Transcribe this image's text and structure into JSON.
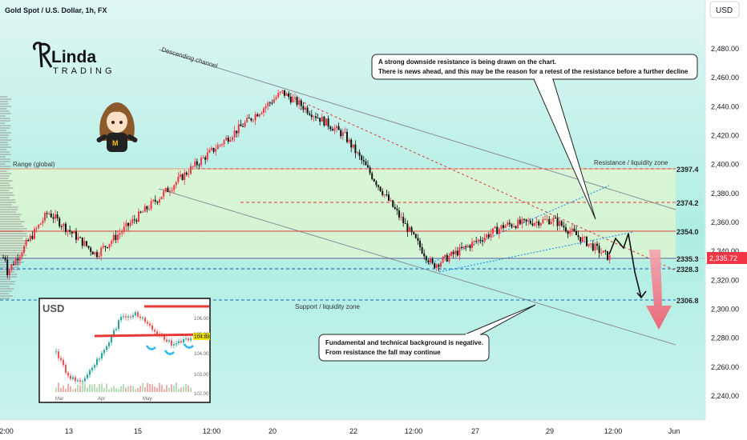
{
  "header": {
    "symbol_title": "Gold Spot / U.S. Dollar, 1h, FX",
    "currency_button": "USD"
  },
  "logo": {
    "text_top": "Linda",
    "text_bottom": "TRADING"
  },
  "price_axis": {
    "labels": [
      "2,480.00",
      "2,460.00",
      "2,440.00",
      "2,420.00",
      "2,400.00",
      "2,380.00",
      "2,360.00",
      "2,340.00",
      "2,320.00",
      "2,300.00",
      "2,280.00",
      "2,260.00",
      "2,240.00"
    ],
    "current_price": "2,335.72",
    "current_price_color": "#f23645"
  },
  "time_axis": {
    "labels": [
      "2:00",
      "13",
      "15",
      "12:00",
      "20",
      "22",
      "12:00",
      "27",
      "29",
      "12:00",
      "Jun"
    ]
  },
  "annotations": {
    "descending_channel": "Descending channel",
    "range_global": "Range (global)",
    "resistance_zone": "Resistance / liquidity zone",
    "support_zone": "Support / liquidity zone",
    "callout_top_line1": "A strong downside resistance is being drawn on the chart.",
    "callout_top_line2": "There is news ahead, and this may be the reason for a retest of the resistance before a further decline",
    "callout_bottom_line1": "Fundamental and technical background is negative.",
    "callout_bottom_line2": "From resistance the fall may continue"
  },
  "level_labels": [
    "2397.4",
    "2374.2",
    "2354.0",
    "2335.3",
    "2328.3",
    "2306.8"
  ],
  "inset": {
    "title": "USD",
    "y_labels": [
      "106.00",
      "105.00",
      "104.00",
      "103.00",
      "102.00"
    ],
    "x_labels": [
      "Mar",
      "Apr",
      "May"
    ],
    "price_tag": "104.88"
  },
  "colors": {
    "up_candle": "#f23645",
    "down_candle": "#111111",
    "resistance_red": "#e53935",
    "support_blue": "#1565c0",
    "channel_gray": "#7a7f8a",
    "arrow_pink": "#ef5a6f"
  },
  "chart_data": {
    "type": "line",
    "title": "Gold Spot / U.S. Dollar, 1h, FX",
    "xlabel": "",
    "ylabel": "",
    "x": [
      "2:00",
      "13",
      "15",
      "12:00",
      "20",
      "22",
      "12:00",
      "27",
      "29",
      "12:00"
    ],
    "ylim": [
      2230,
      2490
    ],
    "series": [
      {
        "values": [
          2325,
          2367,
          2338,
          2398,
          2450,
          2420,
          2330,
          2358,
          2362,
          2335.72
        ]
      }
    ],
    "levels": [
      2397.4,
      2374.2,
      2354.0,
      2335.3,
      2328.3,
      2306.8
    ],
    "current_price": 2335.72
  }
}
